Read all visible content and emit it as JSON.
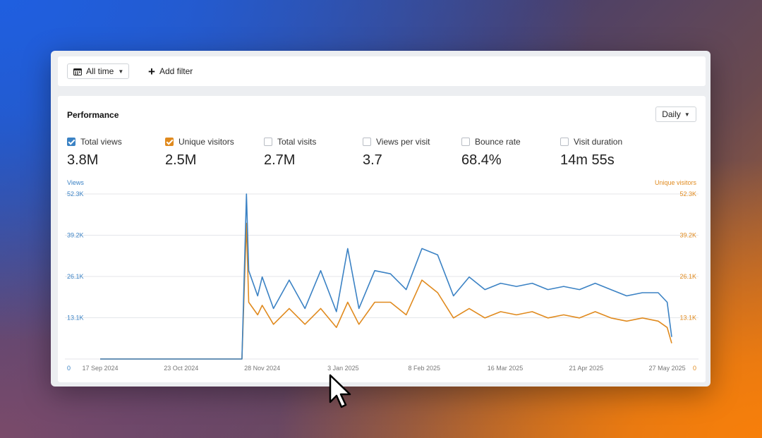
{
  "toolbar": {
    "date_range": "All time",
    "add_filter": "Add filter"
  },
  "panel": {
    "title": "Performance",
    "interval": "Daily"
  },
  "metrics": [
    {
      "label": "Total views",
      "value": "3.8M",
      "checked": true,
      "color": "#3b82c4"
    },
    {
      "label": "Unique visitors",
      "value": "2.5M",
      "checked": true,
      "color": "#e08a1e"
    },
    {
      "label": "Total visits",
      "value": "2.7M",
      "checked": false
    },
    {
      "label": "Views per visit",
      "value": "3.7",
      "checked": false
    },
    {
      "label": "Bounce rate",
      "value": "68.4%",
      "checked": false
    },
    {
      "label": "Visit duration",
      "value": "14m 55s",
      "checked": false
    }
  ],
  "colors": {
    "views": "#3b82c4",
    "visitors": "#e08a1e"
  },
  "chart_data": {
    "type": "line",
    "left_axis_label": "Views",
    "right_axis_label": "Unique visitors",
    "y_ticks": [
      "0",
      "13.1K",
      "26.1K",
      "39.2K",
      "52.3K"
    ],
    "ylim": [
      0,
      52300
    ],
    "x_ticks": [
      "17 Sep 2024",
      "23 Oct 2024",
      "28 Nov 2024",
      "3 Jan 2025",
      "8 Feb 2025",
      "16 Mar 2025",
      "21 Apr 2025",
      "27 May 2025"
    ],
    "x_range": [
      "17 Sep 2024",
      "29 May 2025"
    ],
    "series": [
      {
        "name": "Total views",
        "axis": "left",
        "points": [
          [
            "17 Sep 2024",
            0
          ],
          [
            "19 Nov 2024",
            0
          ],
          [
            "21 Nov 2024",
            52300
          ],
          [
            "22 Nov 2024",
            28000
          ],
          [
            "26 Nov 2024",
            20000
          ],
          [
            "28 Nov 2024",
            26000
          ],
          [
            "3 Dec 2024",
            16000
          ],
          [
            "10 Dec 2024",
            25000
          ],
          [
            "17 Dec 2024",
            16000
          ],
          [
            "24 Dec 2024",
            28000
          ],
          [
            "31 Dec 2024",
            15000
          ],
          [
            "5 Jan 2025",
            35000
          ],
          [
            "10 Jan 2025",
            16000
          ],
          [
            "17 Jan 2025",
            28000
          ],
          [
            "24 Jan 2025",
            27000
          ],
          [
            "31 Jan 2025",
            22000
          ],
          [
            "7 Feb 2025",
            35000
          ],
          [
            "14 Feb 2025",
            33000
          ],
          [
            "21 Feb 2025",
            20000
          ],
          [
            "28 Feb 2025",
            26000
          ],
          [
            "7 Mar 2025",
            22000
          ],
          [
            "14 Mar 2025",
            24000
          ],
          [
            "21 Mar 2025",
            23000
          ],
          [
            "28 Mar 2025",
            24000
          ],
          [
            "4 Apr 2025",
            22000
          ],
          [
            "11 Apr 2025",
            23000
          ],
          [
            "18 Apr 2025",
            22000
          ],
          [
            "25 Apr 2025",
            24000
          ],
          [
            "2 May 2025",
            22000
          ],
          [
            "9 May 2025",
            20000
          ],
          [
            "16 May 2025",
            21000
          ],
          [
            "23 May 2025",
            21000
          ],
          [
            "27 May 2025",
            18000
          ],
          [
            "29 May 2025",
            7000
          ]
        ]
      },
      {
        "name": "Unique visitors",
        "axis": "right",
        "points": [
          [
            "17 Sep 2024",
            0
          ],
          [
            "19 Nov 2024",
            0
          ],
          [
            "21 Nov 2024",
            43000
          ],
          [
            "22 Nov 2024",
            18000
          ],
          [
            "26 Nov 2024",
            14000
          ],
          [
            "28 Nov 2024",
            17000
          ],
          [
            "3 Dec 2024",
            11000
          ],
          [
            "10 Dec 2024",
            16000
          ],
          [
            "17 Dec 2024",
            11000
          ],
          [
            "24 Dec 2024",
            16000
          ],
          [
            "31 Dec 2024",
            10000
          ],
          [
            "5 Jan 2025",
            18000
          ],
          [
            "10 Jan 2025",
            11000
          ],
          [
            "17 Jan 2025",
            18000
          ],
          [
            "24 Jan 2025",
            18000
          ],
          [
            "31 Jan 2025",
            14000
          ],
          [
            "7 Feb 2025",
            25000
          ],
          [
            "14 Feb 2025",
            21000
          ],
          [
            "21 Feb 2025",
            13000
          ],
          [
            "28 Feb 2025",
            16000
          ],
          [
            "7 Mar 2025",
            13000
          ],
          [
            "14 Mar 2025",
            15000
          ],
          [
            "21 Mar 2025",
            14000
          ],
          [
            "28 Mar 2025",
            15000
          ],
          [
            "4 Apr 2025",
            13000
          ],
          [
            "11 Apr 2025",
            14000
          ],
          [
            "18 Apr 2025",
            13000
          ],
          [
            "25 Apr 2025",
            15000
          ],
          [
            "2 May 2025",
            13000
          ],
          [
            "9 May 2025",
            12000
          ],
          [
            "16 May 2025",
            13000
          ],
          [
            "23 May 2025",
            12000
          ],
          [
            "27 May 2025",
            10000
          ],
          [
            "29 May 2025",
            5000
          ]
        ]
      }
    ]
  }
}
